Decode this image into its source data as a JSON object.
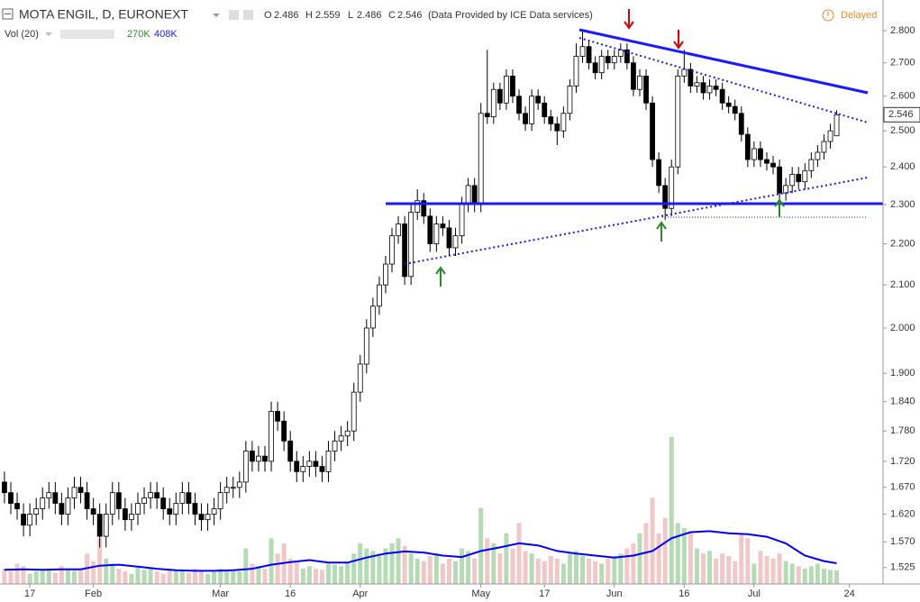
{
  "header": {
    "title": "MOTA ENGIL, D, EURONEXT",
    "ohlc_letters": [
      "O",
      "H",
      "L",
      "C"
    ],
    "source": "(Data Provided by ICE Data services)",
    "status": "Delayed",
    "volume_title": "Vol (20)",
    "volume_value": "270K",
    "volume_ma_value": "408K"
  },
  "chart_data": {
    "type": "candlestick",
    "log_scale": true,
    "grid": false,
    "xlim": [
      -0.7,
      138.3
    ],
    "xticks": [
      {
        "value": 4,
        "label": "17"
      },
      {
        "value": 14,
        "label": "Feb"
      },
      {
        "value": 34,
        "label": "Mar"
      },
      {
        "value": 45,
        "label": "16"
      },
      {
        "value": 56,
        "label": "Apr"
      },
      {
        "value": 75,
        "label": "May"
      },
      {
        "value": 85,
        "label": "17"
      },
      {
        "value": 96,
        "label": "Jun"
      },
      {
        "value": 107,
        "label": "16"
      },
      {
        "value": 118,
        "label": "Jul"
      },
      {
        "value": 133,
        "label": "24"
      }
    ],
    "ylim": [
      1.497,
      2.899
    ],
    "yticks": [
      {
        "value": 1.525,
        "label": "1.525"
      },
      {
        "value": 1.57,
        "label": "1.570"
      },
      {
        "value": 1.62,
        "label": "1.620"
      },
      {
        "value": 1.67,
        "label": "1.670"
      },
      {
        "value": 1.72,
        "label": "1.720"
      },
      {
        "value": 1.78,
        "label": "1.780"
      },
      {
        "value": 1.84,
        "label": "1.840"
      },
      {
        "value": 1.9,
        "label": "1.900"
      },
      {
        "value": 2,
        "label": "2.000"
      },
      {
        "value": 2.1,
        "label": "2.100"
      },
      {
        "value": 2.2,
        "label": "2.200"
      },
      {
        "value": 2.3,
        "label": "2.300"
      },
      {
        "value": 2.4,
        "label": "2.400"
      },
      {
        "value": 2.5,
        "label": "2.500"
      },
      {
        "value": 2.6,
        "label": "2.600"
      },
      {
        "value": 2.7,
        "label": "2.700"
      },
      {
        "value": 2.8,
        "label": "2.800"
      }
    ],
    "y2lim": [
      0,
      3550000
    ],
    "series": [
      {
        "up_color": "#ffffff",
        "down_color": "#000000",
        "open": [
          1.68,
          1.66,
          1.64,
          1.62,
          1.6,
          1.62,
          1.63,
          1.65,
          1.66,
          1.64,
          1.62,
          1.65,
          1.67,
          1.66,
          1.63,
          1.62,
          1.58,
          1.62,
          1.66,
          1.63,
          1.61,
          1.62,
          1.64,
          1.65,
          1.66,
          1.65,
          1.63,
          1.62,
          1.64,
          1.66,
          1.64,
          1.62,
          1.61,
          1.62,
          1.63,
          1.66,
          1.67,
          1.67,
          1.68,
          1.74,
          1.72,
          1.73,
          1.72,
          1.82,
          1.8,
          1.76,
          1.72,
          1.7,
          1.71,
          1.72,
          1.71,
          1.7,
          1.74,
          1.76,
          1.77,
          1.78,
          1.86,
          1.92,
          2.0,
          2.05,
          2.1,
          2.15,
          2.22,
          2.25,
          2.12,
          2.28,
          2.31,
          2.27,
          2.2,
          2.25,
          2.24,
          2.19,
          2.22,
          2.3,
          2.35,
          2.3,
          2.55,
          2.54,
          2.62,
          2.58,
          2.66,
          2.6,
          2.55,
          2.52,
          2.6,
          2.58,
          2.54,
          2.52,
          2.5,
          2.55,
          2.63,
          2.72,
          2.75,
          2.7,
          2.67,
          2.72,
          2.7,
          2.72,
          2.74,
          2.7,
          2.62,
          2.66,
          2.58,
          2.42,
          2.35,
          2.29,
          2.4,
          2.66,
          2.68,
          2.63,
          2.64,
          2.61,
          2.63,
          2.62,
          2.58,
          2.57,
          2.55,
          2.49,
          2.42,
          2.45,
          2.42,
          2.41,
          2.4,
          2.33,
          2.35,
          2.38,
          2.36,
          2.39,
          2.42,
          2.44,
          2.47,
          2.486
        ],
        "high": [
          1.7,
          1.68,
          1.66,
          1.64,
          1.64,
          1.65,
          1.67,
          1.68,
          1.68,
          1.66,
          1.67,
          1.69,
          1.69,
          1.68,
          1.65,
          1.64,
          1.64,
          1.68,
          1.68,
          1.65,
          1.64,
          1.66,
          1.67,
          1.68,
          1.68,
          1.67,
          1.65,
          1.66,
          1.68,
          1.68,
          1.66,
          1.64,
          1.64,
          1.65,
          1.68,
          1.69,
          1.69,
          1.7,
          1.76,
          1.76,
          1.75,
          1.75,
          1.84,
          1.84,
          1.82,
          1.78,
          1.74,
          1.73,
          1.74,
          1.74,
          1.73,
          1.76,
          1.78,
          1.79,
          1.8,
          1.88,
          1.94,
          2.02,
          2.07,
          2.12,
          2.17,
          2.24,
          2.27,
          2.27,
          2.3,
          2.34,
          2.33,
          2.29,
          2.27,
          2.27,
          2.26,
          2.24,
          2.32,
          2.37,
          2.37,
          2.58,
          2.74,
          2.64,
          2.64,
          2.68,
          2.68,
          2.62,
          2.57,
          2.62,
          2.62,
          2.6,
          2.56,
          2.54,
          2.57,
          2.65,
          2.76,
          2.8,
          2.77,
          2.72,
          2.74,
          2.74,
          2.74,
          2.76,
          2.76,
          2.72,
          2.68,
          2.68,
          2.6,
          2.44,
          2.37,
          2.42,
          2.68,
          2.74,
          2.7,
          2.66,
          2.66,
          2.65,
          2.65,
          2.64,
          2.6,
          2.59,
          2.57,
          2.51,
          2.47,
          2.47,
          2.44,
          2.43,
          2.42,
          2.37,
          2.4,
          2.4,
          2.41,
          2.44,
          2.46,
          2.49,
          2.52,
          2.559
        ],
        "low": [
          1.64,
          1.62,
          1.61,
          1.58,
          1.58,
          1.6,
          1.61,
          1.63,
          1.62,
          1.6,
          1.6,
          1.63,
          1.64,
          1.61,
          1.6,
          1.56,
          1.56,
          1.6,
          1.61,
          1.59,
          1.59,
          1.6,
          1.62,
          1.63,
          1.63,
          1.61,
          1.6,
          1.6,
          1.62,
          1.62,
          1.6,
          1.59,
          1.59,
          1.6,
          1.61,
          1.64,
          1.65,
          1.65,
          1.66,
          1.7,
          1.7,
          1.7,
          1.7,
          1.78,
          1.74,
          1.7,
          1.68,
          1.68,
          1.69,
          1.69,
          1.68,
          1.68,
          1.72,
          1.74,
          1.75,
          1.76,
          1.84,
          1.9,
          1.98,
          2.03,
          2.08,
          2.13,
          2.2,
          2.1,
          2.1,
          2.26,
          2.25,
          2.18,
          2.18,
          2.22,
          2.17,
          2.17,
          2.2,
          2.28,
          2.28,
          2.28,
          2.52,
          2.52,
          2.56,
          2.56,
          2.58,
          2.53,
          2.5,
          2.5,
          2.56,
          2.52,
          2.5,
          2.46,
          2.48,
          2.53,
          2.61,
          2.7,
          2.68,
          2.65,
          2.65,
          2.68,
          2.68,
          2.7,
          2.68,
          2.6,
          2.6,
          2.56,
          2.4,
          2.33,
          2.26,
          2.27,
          2.38,
          2.64,
          2.61,
          2.61,
          2.59,
          2.59,
          2.6,
          2.56,
          2.55,
          2.53,
          2.47,
          2.4,
          2.4,
          2.4,
          2.39,
          2.38,
          2.31,
          2.31,
          2.33,
          2.34,
          2.34,
          2.37,
          2.4,
          2.42,
          2.45,
          2.486
        ],
        "close": [
          1.66,
          1.64,
          1.63,
          1.6,
          1.62,
          1.63,
          1.65,
          1.66,
          1.64,
          1.62,
          1.65,
          1.67,
          1.66,
          1.63,
          1.62,
          1.58,
          1.62,
          1.66,
          1.63,
          1.61,
          1.62,
          1.64,
          1.65,
          1.66,
          1.65,
          1.63,
          1.62,
          1.64,
          1.66,
          1.64,
          1.62,
          1.61,
          1.62,
          1.63,
          1.66,
          1.67,
          1.67,
          1.68,
          1.74,
          1.72,
          1.73,
          1.72,
          1.82,
          1.8,
          1.76,
          1.72,
          1.7,
          1.71,
          1.72,
          1.71,
          1.7,
          1.74,
          1.76,
          1.77,
          1.78,
          1.86,
          1.92,
          2.0,
          2.05,
          2.1,
          2.15,
          2.22,
          2.25,
          2.12,
          2.28,
          2.31,
          2.27,
          2.2,
          2.25,
          2.24,
          2.19,
          2.22,
          2.3,
          2.35,
          2.3,
          2.55,
          2.54,
          2.62,
          2.58,
          2.66,
          2.6,
          2.55,
          2.52,
          2.6,
          2.58,
          2.54,
          2.52,
          2.5,
          2.55,
          2.63,
          2.72,
          2.75,
          2.7,
          2.67,
          2.72,
          2.7,
          2.72,
          2.74,
          2.7,
          2.62,
          2.66,
          2.58,
          2.42,
          2.35,
          2.29,
          2.4,
          2.66,
          2.68,
          2.63,
          2.64,
          2.61,
          2.63,
          2.62,
          2.58,
          2.57,
          2.55,
          2.49,
          2.42,
          2.45,
          2.42,
          2.41,
          2.4,
          2.33,
          2.35,
          2.38,
          2.36,
          2.39,
          2.42,
          2.44,
          2.47,
          2.5,
          2.546
        ]
      },
      {
        "axis": "y2",
        "up_color": "#b5dbb5",
        "down_color": "#f0c8c8",
        "values": [
          300000,
          250000,
          400000,
          350000,
          200000,
          250000,
          300000,
          280000,
          220000,
          350000,
          300000,
          260000,
          280000,
          600000,
          450000,
          900000,
          500000,
          400000,
          300000,
          250000,
          200000,
          350000,
          280000,
          300000,
          250000,
          200000,
          300000,
          280000,
          260000,
          220000,
          300000,
          250000,
          200000,
          240000,
          300000,
          280000,
          260000,
          250000,
          700000,
          400000,
          350000,
          300000,
          900000,
          600000,
          800000,
          500000,
          450000,
          300000,
          350000,
          300000,
          280000,
          400000,
          380000,
          350000,
          420000,
          600000,
          800000,
          700000,
          650000,
          600000,
          700000,
          800000,
          900000,
          750000,
          600000,
          500000,
          450000,
          550000,
          600000,
          400000,
          500000,
          450000,
          700000,
          650000,
          500000,
          1500000,
          900000,
          800000,
          600000,
          1000000,
          700000,
          1200000,
          650000,
          600000,
          500000,
          450000,
          550000,
          500000,
          400000,
          600000,
          650000,
          550000,
          500000,
          450000,
          400000,
          500000,
          550000,
          600000,
          700000,
          800000,
          1000000,
          1200000,
          1700000,
          1000000,
          1300000,
          2900000,
          1200000,
          1100000,
          1000000,
          700000,
          600000,
          650000,
          500000,
          600000,
          550000,
          450000,
          1000000,
          900000,
          400000,
          650000,
          550000,
          500000,
          600000,
          450000,
          400000,
          350000,
          300000,
          350000,
          400000,
          300000,
          280000,
          270000
        ]
      },
      {
        "axis": "y2",
        "color": "#0000ff",
        "x": [
          0,
          3,
          6,
          9,
          12,
          15,
          18,
          21,
          24,
          27,
          30,
          33,
          36,
          39,
          42,
          45,
          48,
          51,
          54,
          57,
          60,
          63,
          66,
          69,
          72,
          75,
          78,
          81,
          84,
          87,
          90,
          93,
          96,
          99,
          102,
          105,
          108,
          111,
          114,
          117,
          120,
          123,
          126,
          129,
          131
        ],
        "values": [
          280000,
          290000,
          280000,
          290000,
          290000,
          360000,
          380000,
          340000,
          300000,
          270000,
          260000,
          260000,
          270000,
          300000,
          380000,
          430000,
          470000,
          420000,
          420000,
          520000,
          600000,
          640000,
          620000,
          560000,
          530000,
          650000,
          720000,
          800000,
          760000,
          650000,
          600000,
          560000,
          520000,
          560000,
          650000,
          900000,
          1020000,
          1040000,
          1000000,
          980000,
          930000,
          800000,
          560000,
          450000,
          408000
        ]
      }
    ]
  }
}
